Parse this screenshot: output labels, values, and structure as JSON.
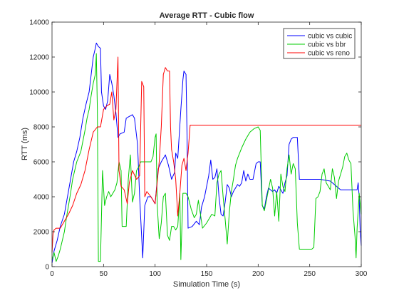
{
  "chart_data": {
    "type": "line",
    "title": "Average RTT - Cubic flow",
    "xlabel": "Simulation Time (s)",
    "ylabel": "RTT (ms)",
    "xlim": [
      0,
      300
    ],
    "ylim": [
      0,
      14000
    ],
    "xticks": [
      0,
      50,
      100,
      150,
      200,
      250,
      300
    ],
    "yticks": [
      0,
      2000,
      4000,
      6000,
      8000,
      10000,
      12000,
      14000
    ],
    "grid": false,
    "legend_position": "top-right",
    "series": [
      {
        "name": "cubic vs cubic",
        "color": "#0000ff",
        "points": [
          [
            0,
            200
          ],
          [
            2,
            900
          ],
          [
            5,
            1500
          ],
          [
            8,
            2300
          ],
          [
            12,
            3000
          ],
          [
            15,
            4000
          ],
          [
            18,
            5000
          ],
          [
            21,
            6000
          ],
          [
            24,
            6600
          ],
          [
            27,
            7400
          ],
          [
            30,
            8500
          ],
          [
            33,
            9300
          ],
          [
            36,
            10000
          ],
          [
            38,
            11000
          ],
          [
            40,
            12000
          ],
          [
            42,
            12500
          ],
          [
            43,
            12800
          ],
          [
            45,
            12600
          ],
          [
            47,
            12500
          ],
          [
            48,
            10000
          ],
          [
            50,
            9200
          ],
          [
            52,
            9000
          ],
          [
            54,
            9500
          ],
          [
            56,
            11000
          ],
          [
            58,
            10500
          ],
          [
            60,
            9800
          ],
          [
            62,
            8800
          ],
          [
            64,
            7400
          ],
          [
            66,
            7600
          ],
          [
            70,
            7700
          ],
          [
            72,
            8500
          ],
          [
            75,
            8600
          ],
          [
            78,
            8700
          ],
          [
            80,
            8500
          ],
          [
            83,
            7000
          ],
          [
            85,
            4000
          ],
          [
            88,
            500
          ],
          [
            90,
            3500
          ],
          [
            93,
            4000
          ],
          [
            96,
            4000
          ],
          [
            100,
            3600
          ],
          [
            103,
            5600
          ],
          [
            106,
            6000
          ],
          [
            110,
            6400
          ],
          [
            113,
            5800
          ],
          [
            116,
            5000
          ],
          [
            119,
            5400
          ],
          [
            120,
            6500
          ],
          [
            122,
            6200
          ],
          [
            125,
            9000
          ],
          [
            127,
            10700
          ],
          [
            128,
            11200
          ],
          [
            130,
            11000
          ],
          [
            131,
            7500
          ],
          [
            132,
            2200
          ],
          [
            136,
            2300
          ],
          [
            140,
            2600
          ],
          [
            143,
            2400
          ],
          [
            145,
            3400
          ],
          [
            148,
            4000
          ],
          [
            150,
            4600
          ],
          [
            152,
            5200
          ],
          [
            154,
            6100
          ],
          [
            156,
            5000
          ],
          [
            158,
            5100
          ],
          [
            160,
            5600
          ],
          [
            162,
            4000
          ],
          [
            164,
            3000
          ],
          [
            166,
            2900
          ],
          [
            168,
            3700
          ],
          [
            170,
            4700
          ],
          [
            172,
            4500
          ],
          [
            174,
            4000
          ],
          [
            176,
            4300
          ],
          [
            178,
            4500
          ],
          [
            180,
            4700
          ],
          [
            182,
            4600
          ],
          [
            184,
            4800
          ],
          [
            186,
            5500
          ],
          [
            188,
            4900
          ],
          [
            190,
            5300
          ],
          [
            192,
            5000
          ],
          [
            195,
            5000
          ],
          [
            198,
            5900
          ],
          [
            200,
            6000
          ],
          [
            202,
            6000
          ],
          [
            204,
            3500
          ],
          [
            206,
            3300
          ],
          [
            208,
            4000
          ],
          [
            210,
            4500
          ],
          [
            212,
            4400
          ],
          [
            214,
            4300
          ],
          [
            216,
            4400
          ],
          [
            218,
            4200
          ],
          [
            220,
            4600
          ],
          [
            222,
            4400
          ],
          [
            224,
            4200
          ],
          [
            226,
            4800
          ],
          [
            228,
            5200
          ],
          [
            230,
            7000
          ],
          [
            232,
            7300
          ],
          [
            234,
            7400
          ],
          [
            238,
            7400
          ],
          [
            240,
            5000
          ],
          [
            245,
            5000
          ],
          [
            250,
            5000
          ],
          [
            260,
            5000
          ],
          [
            270,
            4900
          ],
          [
            280,
            4400
          ],
          [
            290,
            4400
          ],
          [
            296,
            4400
          ],
          [
            297,
            4800
          ],
          [
            298,
            4000
          ],
          [
            299,
            2000
          ],
          [
            300,
            1200
          ]
        ]
      },
      {
        "name": "cubic vs bbr",
        "color": "#00cc00",
        "points": [
          [
            0,
            400
          ],
          [
            2,
            800
          ],
          [
            4,
            300
          ],
          [
            6,
            600
          ],
          [
            8,
            1000
          ],
          [
            10,
            1500
          ],
          [
            12,
            2000
          ],
          [
            14,
            2800
          ],
          [
            16,
            3500
          ],
          [
            18,
            4200
          ],
          [
            20,
            5000
          ],
          [
            22,
            5500
          ],
          [
            24,
            6000
          ],
          [
            26,
            6300
          ],
          [
            28,
            6600
          ],
          [
            30,
            7200
          ],
          [
            32,
            7800
          ],
          [
            34,
            8500
          ],
          [
            36,
            9000
          ],
          [
            38,
            9800
          ],
          [
            40,
            10500
          ],
          [
            42,
            11000
          ],
          [
            43,
            12200
          ],
          [
            44,
            9000
          ],
          [
            45,
            300
          ],
          [
            47,
            300
          ],
          [
            49,
            5500
          ],
          [
            51,
            3500
          ],
          [
            53,
            4000
          ],
          [
            55,
            4300
          ],
          [
            57,
            4000
          ],
          [
            59,
            4200
          ],
          [
            61,
            4400
          ],
          [
            63,
            4800
          ],
          [
            65,
            6000
          ],
          [
            67,
            5500
          ],
          [
            68,
            2300
          ],
          [
            70,
            2300
          ],
          [
            72,
            2300
          ],
          [
            74,
            5000
          ],
          [
            76,
            6400
          ],
          [
            78,
            3700
          ],
          [
            80,
            4200
          ],
          [
            82,
            5500
          ],
          [
            84,
            5700
          ],
          [
            86,
            6000
          ],
          [
            90,
            6000
          ],
          [
            94,
            6000
          ],
          [
            96,
            6000
          ],
          [
            98,
            6300
          ],
          [
            100,
            7400
          ],
          [
            101,
            7600
          ],
          [
            102,
            3600
          ],
          [
            104,
            1600
          ],
          [
            106,
            2500
          ],
          [
            108,
            4000
          ],
          [
            110,
            4200
          ],
          [
            112,
            1800
          ],
          [
            114,
            1500
          ],
          [
            116,
            2300
          ],
          [
            118,
            2300
          ],
          [
            120,
            2100
          ],
          [
            122,
            2300
          ],
          [
            124,
            4200
          ],
          [
            125,
            400
          ],
          [
            127,
            4200
          ],
          [
            130,
            4200
          ],
          [
            132,
            4000
          ],
          [
            135,
            3300
          ],
          [
            138,
            2800
          ],
          [
            140,
            3000
          ],
          [
            142,
            3800
          ],
          [
            146,
            2200
          ],
          [
            150,
            2500
          ],
          [
            155,
            3000
          ],
          [
            158,
            2900
          ],
          [
            160,
            4800
          ],
          [
            162,
            5300
          ],
          [
            164,
            5500
          ],
          [
            166,
            4000
          ],
          [
            168,
            2700
          ],
          [
            170,
            1300
          ],
          [
            172,
            3100
          ],
          [
            174,
            4300
          ],
          [
            176,
            5000
          ],
          [
            178,
            5800
          ],
          [
            180,
            6200
          ],
          [
            184,
            6800
          ],
          [
            188,
            7300
          ],
          [
            192,
            7700
          ],
          [
            196,
            7900
          ],
          [
            200,
            8000
          ],
          [
            202,
            7800
          ],
          [
            204,
            3500
          ],
          [
            206,
            3200
          ],
          [
            208,
            3800
          ],
          [
            210,
            4400
          ],
          [
            212,
            5000
          ],
          [
            214,
            4500
          ],
          [
            216,
            2900
          ],
          [
            218,
            4300
          ],
          [
            220,
            2600
          ],
          [
            222,
            5300
          ],
          [
            224,
            4600
          ],
          [
            226,
            4300
          ],
          [
            228,
            5600
          ],
          [
            230,
            6400
          ],
          [
            232,
            5300
          ],
          [
            234,
            5900
          ],
          [
            236,
            5600
          ],
          [
            238,
            2500
          ],
          [
            240,
            1000
          ],
          [
            244,
            1000
          ],
          [
            248,
            1000
          ],
          [
            252,
            1000
          ],
          [
            254,
            1100
          ],
          [
            256,
            3900
          ],
          [
            258,
            4000
          ],
          [
            260,
            4300
          ],
          [
            262,
            5300
          ],
          [
            264,
            5600
          ],
          [
            266,
            4800
          ],
          [
            268,
            4600
          ],
          [
            270,
            4400
          ],
          [
            272,
            5600
          ],
          [
            274,
            5100
          ],
          [
            276,
            3900
          ],
          [
            278,
            4900
          ],
          [
            280,
            5300
          ],
          [
            282,
            5700
          ],
          [
            284,
            6300
          ],
          [
            286,
            6500
          ],
          [
            288,
            6100
          ],
          [
            290,
            5900
          ],
          [
            292,
            3200
          ],
          [
            294,
            1700
          ],
          [
            295,
            500
          ],
          [
            296,
            2200
          ],
          [
            298,
            4200
          ],
          [
            300,
            3000
          ]
        ]
      },
      {
        "name": "cubic vs reno",
        "color": "#ff0000",
        "points": [
          [
            0,
            800
          ],
          [
            1,
            1900
          ],
          [
            2,
            2100
          ],
          [
            4,
            2200
          ],
          [
            8,
            2200
          ],
          [
            12,
            2600
          ],
          [
            16,
            3000
          ],
          [
            20,
            3500
          ],
          [
            24,
            4200
          ],
          [
            28,
            4700
          ],
          [
            32,
            5500
          ],
          [
            36,
            6700
          ],
          [
            40,
            7700
          ],
          [
            44,
            8000
          ],
          [
            47,
            8000
          ],
          [
            50,
            9000
          ],
          [
            53,
            9200
          ],
          [
            56,
            9300
          ],
          [
            58,
            10000
          ],
          [
            60,
            8400
          ],
          [
            62,
            9000
          ],
          [
            64,
            12000
          ],
          [
            65,
            5500
          ],
          [
            67,
            4600
          ],
          [
            70,
            4400
          ],
          [
            73,
            3600
          ],
          [
            75,
            4800
          ],
          [
            78,
            5500
          ],
          [
            82,
            5000
          ],
          [
            85,
            5200
          ],
          [
            87,
            10600
          ],
          [
            89,
            10300
          ],
          [
            90,
            4000
          ],
          [
            92,
            4300
          ],
          [
            96,
            4000
          ],
          [
            100,
            3600
          ],
          [
            102,
            4800
          ],
          [
            104,
            6000
          ],
          [
            106,
            8000
          ],
          [
            108,
            11000
          ],
          [
            110,
            11400
          ],
          [
            112,
            11200
          ],
          [
            114,
            11200
          ],
          [
            115,
            8000
          ],
          [
            116,
            6700
          ],
          [
            118,
            6000
          ],
          [
            120,
            5000
          ],
          [
            122,
            2900
          ],
          [
            124,
            4200
          ],
          [
            126,
            5800
          ],
          [
            128,
            6200
          ],
          [
            130,
            5500
          ],
          [
            132,
            6500
          ],
          [
            134,
            8100
          ],
          [
            150,
            8100
          ],
          [
            200,
            8100
          ],
          [
            250,
            8100
          ],
          [
            300,
            8100
          ]
        ]
      }
    ]
  }
}
